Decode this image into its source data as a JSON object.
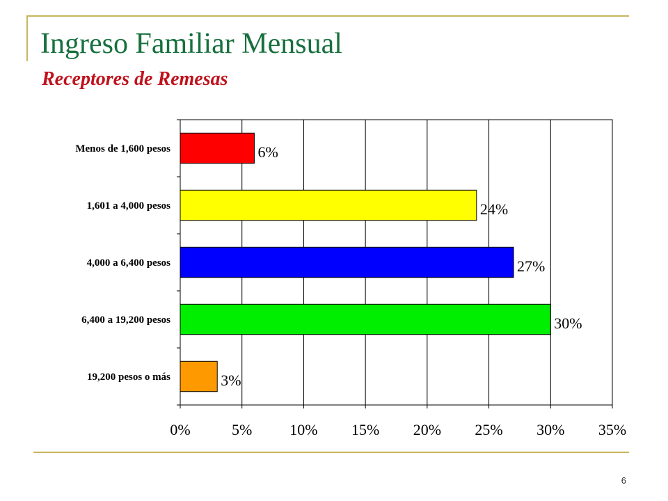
{
  "slide": {
    "title": "Ingreso Familiar Mensual",
    "subtitle": "Receptores de Remesas",
    "page_number": "6"
  },
  "chart_data": {
    "type": "bar",
    "orientation": "horizontal",
    "title": "",
    "xlabel": "",
    "ylabel": "",
    "xlim": [
      0,
      35
    ],
    "x_ticks": [
      0,
      5,
      10,
      15,
      20,
      25,
      30,
      35
    ],
    "tick_format": "{v}%",
    "grid": true,
    "legend": "none",
    "categories": [
      "Menos de 1,600 pesos",
      "1,601 a 4,000 pesos",
      "4,000 a 6,400 pesos",
      "6,400 a 19,200 pesos",
      "19,200 pesos o más"
    ],
    "values": [
      6,
      24,
      27,
      30,
      3
    ],
    "value_labels": [
      "6%",
      "24%",
      "27%",
      "30%",
      "3%"
    ],
    "colors": [
      "#ff0000",
      "#ffff00",
      "#0000ff",
      "#00ee00",
      "#ff9900"
    ]
  }
}
